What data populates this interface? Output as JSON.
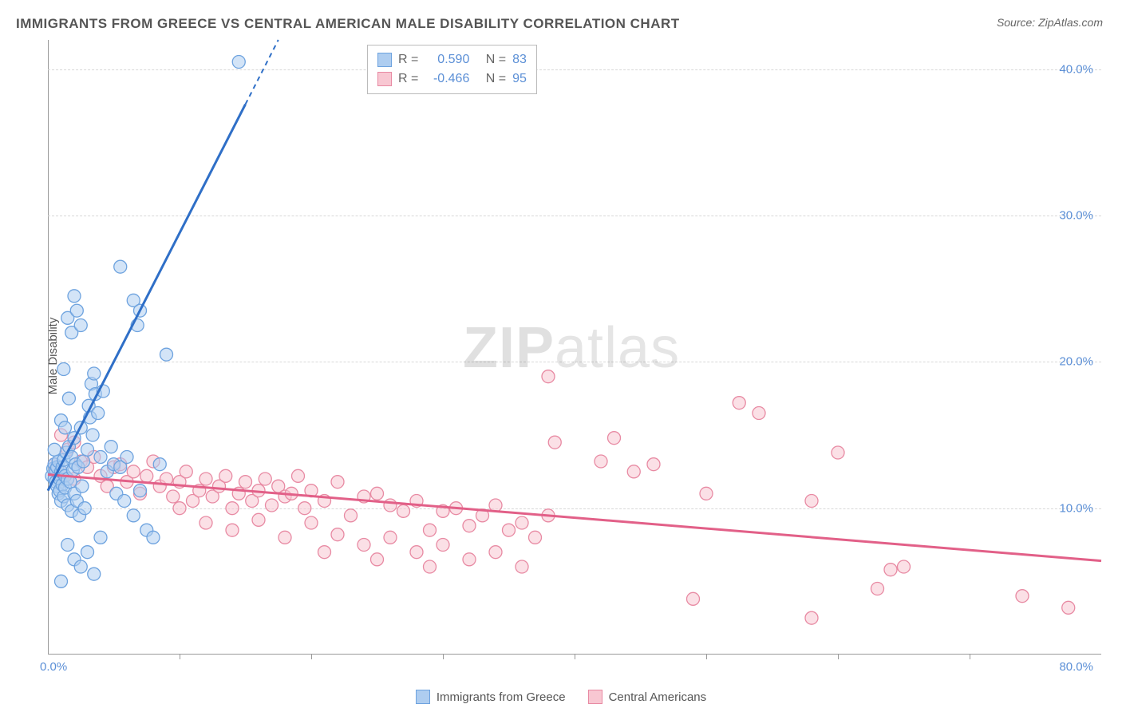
{
  "title": "IMMIGRANTS FROM GREECE VS CENTRAL AMERICAN MALE DISABILITY CORRELATION CHART",
  "source": "Source: ZipAtlas.com",
  "ylabel": "Male Disability",
  "watermark": {
    "zip": "ZIP",
    "atlas": "atlas"
  },
  "chart": {
    "type": "scatter",
    "background_color": "#ffffff",
    "grid_color": "#d8d8d8",
    "axis_color": "#999999",
    "tick_color": "#5b8fd6",
    "xlim": [
      0,
      80
    ],
    "ylim": [
      0,
      42
    ],
    "yticks": [
      10,
      20,
      30,
      40
    ],
    "ytick_labels": [
      "10.0%",
      "20.0%",
      "30.0%",
      "40.0%"
    ],
    "xtick_marks": [
      10,
      20,
      30,
      40,
      50,
      60,
      70
    ],
    "x_limit_labels": {
      "min": "0.0%",
      "max": "80.0%"
    },
    "marker_radius": 8,
    "marker_opacity": 0.55,
    "line_width_main": 3,
    "line_width_dash": 2
  },
  "series": {
    "greece": {
      "label": "Immigrants from Greece",
      "color_fill": "#aecdf0",
      "color_stroke": "#6ea3df",
      "line_color": "#2f6fc7",
      "R": "0.590",
      "N": "83",
      "trend": {
        "x1": 0,
        "y1": 11.2,
        "x2": 17.5,
        "y2": 42,
        "dash_from_x": 15.0
      },
      "points": [
        [
          0.3,
          12.2
        ],
        [
          0.4,
          12.7
        ],
        [
          0.5,
          12.0
        ],
        [
          0.5,
          13.0
        ],
        [
          0.6,
          11.8
        ],
        [
          0.6,
          12.6
        ],
        [
          0.7,
          11.5
        ],
        [
          0.7,
          12.8
        ],
        [
          0.8,
          11.0
        ],
        [
          0.8,
          13.2
        ],
        [
          0.9,
          12.0
        ],
        [
          0.9,
          11.2
        ],
        [
          1.0,
          12.5
        ],
        [
          1.0,
          10.5
        ],
        [
          1.1,
          12.8
        ],
        [
          1.1,
          11.6
        ],
        [
          1.2,
          13.3
        ],
        [
          1.2,
          10.8
        ],
        [
          1.3,
          12.2
        ],
        [
          1.3,
          11.4
        ],
        [
          1.4,
          13.8
        ],
        [
          1.5,
          12.0
        ],
        [
          1.5,
          10.2
        ],
        [
          1.6,
          14.2
        ],
        [
          1.7,
          11.8
        ],
        [
          1.8,
          13.5
        ],
        [
          1.8,
          9.8
        ],
        [
          1.9,
          12.6
        ],
        [
          2.0,
          11.0
        ],
        [
          2.0,
          14.8
        ],
        [
          2.1,
          13.0
        ],
        [
          2.2,
          10.5
        ],
        [
          2.3,
          12.8
        ],
        [
          2.4,
          9.5
        ],
        [
          2.5,
          15.5
        ],
        [
          2.6,
          11.5
        ],
        [
          2.7,
          13.2
        ],
        [
          2.8,
          10.0
        ],
        [
          3.0,
          14.0
        ],
        [
          3.1,
          17.0
        ],
        [
          3.2,
          16.2
        ],
        [
          3.3,
          18.5
        ],
        [
          3.4,
          15.0
        ],
        [
          3.5,
          19.2
        ],
        [
          3.6,
          17.8
        ],
        [
          3.8,
          16.5
        ],
        [
          4.0,
          13.5
        ],
        [
          4.2,
          18.0
        ],
        [
          4.5,
          12.5
        ],
        [
          4.8,
          14.2
        ],
        [
          5.0,
          13.0
        ],
        [
          5.2,
          11.0
        ],
        [
          5.5,
          12.8
        ],
        [
          5.8,
          10.5
        ],
        [
          6.0,
          13.5
        ],
        [
          6.5,
          9.5
        ],
        [
          7.0,
          11.2
        ],
        [
          7.5,
          8.5
        ],
        [
          8.0,
          8.0
        ],
        [
          8.5,
          13.0
        ],
        [
          1.0,
          5.0
        ],
        [
          1.5,
          7.5
        ],
        [
          2.0,
          6.5
        ],
        [
          2.5,
          6.0
        ],
        [
          3.0,
          7.0
        ],
        [
          3.5,
          5.5
        ],
        [
          4.0,
          8.0
        ],
        [
          1.2,
          19.5
        ],
        [
          1.5,
          23.0
        ],
        [
          1.8,
          22.0
        ],
        [
          2.0,
          24.5
        ],
        [
          2.2,
          23.5
        ],
        [
          2.5,
          22.5
        ],
        [
          6.5,
          24.2
        ],
        [
          6.8,
          22.5
        ],
        [
          7.0,
          23.5
        ],
        [
          9.0,
          20.5
        ],
        [
          5.5,
          26.5
        ],
        [
          14.5,
          40.5
        ],
        [
          1.0,
          16.0
        ],
        [
          1.3,
          15.5
        ],
        [
          1.6,
          17.5
        ],
        [
          0.5,
          14.0
        ]
      ]
    },
    "central": {
      "label": "Central Americans",
      "color_fill": "#f8c7d2",
      "color_stroke": "#e88aa3",
      "line_color": "#e26088",
      "R": "-0.466",
      "N": "95",
      "trend": {
        "x1": 0,
        "y1": 12.3,
        "x2": 80,
        "y2": 6.4
      },
      "points": [
        [
          0.5,
          13.0
        ],
        [
          1.0,
          12.5
        ],
        [
          1.5,
          14.0
        ],
        [
          2.0,
          12.0
        ],
        [
          2.5,
          13.2
        ],
        [
          3.0,
          12.8
        ],
        [
          3.5,
          13.5
        ],
        [
          4.0,
          12.2
        ],
        [
          4.5,
          11.5
        ],
        [
          5.0,
          12.8
        ],
        [
          5.5,
          13.0
        ],
        [
          6.0,
          11.8
        ],
        [
          6.5,
          12.5
        ],
        [
          7.0,
          11.0
        ],
        [
          7.5,
          12.2
        ],
        [
          8.0,
          13.2
        ],
        [
          8.5,
          11.5
        ],
        [
          9.0,
          12.0
        ],
        [
          9.5,
          10.8
        ],
        [
          10.0,
          11.8
        ],
        [
          10.5,
          12.5
        ],
        [
          11.0,
          10.5
        ],
        [
          11.5,
          11.2
        ],
        [
          12.0,
          12.0
        ],
        [
          12.5,
          10.8
        ],
        [
          13.0,
          11.5
        ],
        [
          13.5,
          12.2
        ],
        [
          14.0,
          10.0
        ],
        [
          14.5,
          11.0
        ],
        [
          15.0,
          11.8
        ],
        [
          15.5,
          10.5
        ],
        [
          16.0,
          11.2
        ],
        [
          16.5,
          12.0
        ],
        [
          17.0,
          10.2
        ],
        [
          17.5,
          11.5
        ],
        [
          18.0,
          10.8
        ],
        [
          18.5,
          11.0
        ],
        [
          19.0,
          12.2
        ],
        [
          19.5,
          10.0
        ],
        [
          20.0,
          11.2
        ],
        [
          21.0,
          10.5
        ],
        [
          22.0,
          11.8
        ],
        [
          23.0,
          9.5
        ],
        [
          24.0,
          10.8
        ],
        [
          25.0,
          11.0
        ],
        [
          26.0,
          10.2
        ],
        [
          27.0,
          9.8
        ],
        [
          28.0,
          10.5
        ],
        [
          29.0,
          8.5
        ],
        [
          30.0,
          9.8
        ],
        [
          31.0,
          10.0
        ],
        [
          32.0,
          8.8
        ],
        [
          33.0,
          9.5
        ],
        [
          34.0,
          10.2
        ],
        [
          35.0,
          8.5
        ],
        [
          36.0,
          9.0
        ],
        [
          37.0,
          8.0
        ],
        [
          38.0,
          9.5
        ],
        [
          10.0,
          10.0
        ],
        [
          12.0,
          9.0
        ],
        [
          14.0,
          8.5
        ],
        [
          16.0,
          9.2
        ],
        [
          18.0,
          8.0
        ],
        [
          20.0,
          9.0
        ],
        [
          22.0,
          8.2
        ],
        [
          24.0,
          7.5
        ],
        [
          26.0,
          8.0
        ],
        [
          28.0,
          7.0
        ],
        [
          30.0,
          7.5
        ],
        [
          32.0,
          6.5
        ],
        [
          34.0,
          7.0
        ],
        [
          36.0,
          6.0
        ],
        [
          21.0,
          7.0
        ],
        [
          25.0,
          6.5
        ],
        [
          29.0,
          6.0
        ],
        [
          38.0,
          19.0
        ],
        [
          38.5,
          14.5
        ],
        [
          42.0,
          13.2
        ],
        [
          43.0,
          14.8
        ],
        [
          44.5,
          12.5
        ],
        [
          46.0,
          13.0
        ],
        [
          50.0,
          11.0
        ],
        [
          52.5,
          17.2
        ],
        [
          54.0,
          16.5
        ],
        [
          58.0,
          10.5
        ],
        [
          60.0,
          13.8
        ],
        [
          63.0,
          4.5
        ],
        [
          64.0,
          5.8
        ],
        [
          65.0,
          6.0
        ],
        [
          58.0,
          2.5
        ],
        [
          49.0,
          3.8
        ],
        [
          74.0,
          4.0
        ],
        [
          77.5,
          3.2
        ],
        [
          1.0,
          15.0
        ],
        [
          2.0,
          14.5
        ]
      ]
    }
  },
  "correl_box": {
    "prefix_R": "R =",
    "prefix_N": "N ="
  },
  "legend": {
    "label_a": "Immigrants from Greece",
    "label_b": "Central Americans"
  }
}
